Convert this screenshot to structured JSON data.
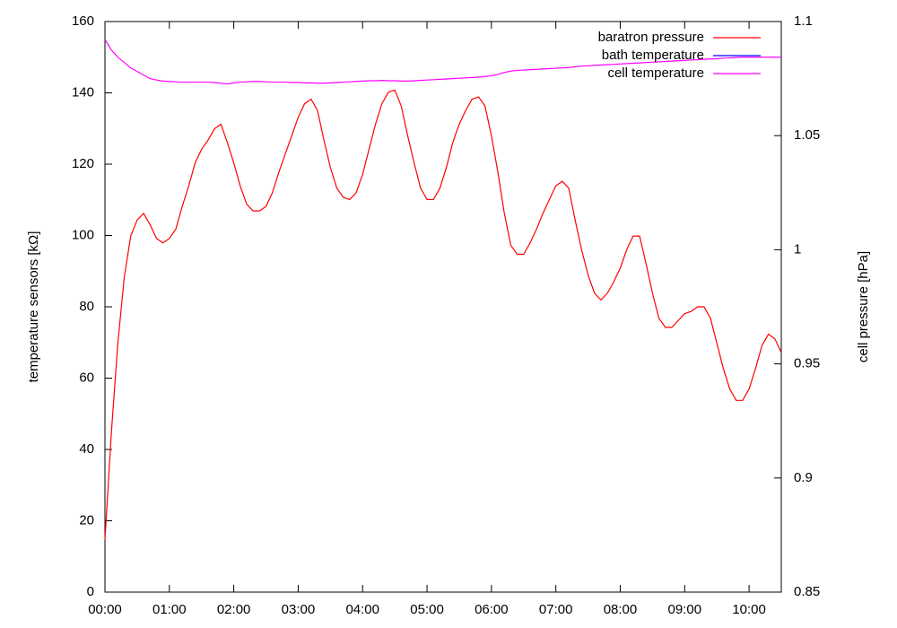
{
  "chart_data": {
    "type": "line",
    "ylabel": "temperature sensors [kΩ]",
    "y2label": "cell pressure [hPa]",
    "x": [
      0,
      0.1,
      0.2,
      0.3,
      0.4,
      0.5,
      0.6,
      0.7,
      0.8,
      0.9,
      1,
      1.1,
      1.2,
      1.3,
      1.4,
      1.5,
      1.6,
      1.7,
      1.8,
      1.9,
      2,
      2.1,
      2.2,
      2.3,
      2.4,
      2.5,
      2.6,
      2.7,
      2.8,
      2.9,
      3,
      3.1,
      3.2,
      3.3,
      3.4,
      3.5,
      3.6,
      3.7,
      3.8,
      3.9,
      4,
      4.1,
      4.2,
      4.3,
      4.4,
      4.5,
      4.6,
      4.7,
      4.8,
      4.9,
      5,
      5.1,
      5.2,
      5.3,
      5.4,
      5.5,
      5.6,
      5.7,
      5.8,
      5.9,
      6,
      6.1,
      6.2,
      6.3,
      6.4,
      6.5,
      6.6,
      6.7,
      6.8,
      6.9,
      7,
      7.1,
      7.2,
      7.3,
      7.4,
      7.5,
      7.6,
      7.7,
      7.8,
      7.9,
      8,
      8.1,
      8.2,
      8.3,
      8.4,
      8.5,
      8.6,
      8.7,
      8.8,
      8.9,
      9,
      9.1,
      9.2,
      9.3,
      9.4,
      9.5,
      9.6,
      9.7,
      9.8,
      9.9,
      10,
      10.1,
      10.2,
      10.3,
      10.4,
      10.5
    ],
    "series": [
      {
        "name": "baratron pressure",
        "color": "#ff0000",
        "axis": "y2",
        "values": [
          0.873,
          0.92,
          0.959,
          0.988,
          1.006,
          1.013,
          1.016,
          1.011,
          1.005,
          1.003,
          1.005,
          1.009,
          1.019,
          1.028,
          1.038,
          1.044,
          1.048,
          1.053,
          1.055,
          1.047,
          1.038,
          1.028,
          1.02,
          1.017,
          1.017,
          1.019,
          1.025,
          1.034,
          1.042,
          1.05,
          1.058,
          1.064,
          1.066,
          1.061,
          1.048,
          1.036,
          1.027,
          1.023,
          1.022,
          1.025,
          1.033,
          1.044,
          1.055,
          1.064,
          1.069,
          1.07,
          1.063,
          1.05,
          1.038,
          1.027,
          1.022,
          1.022,
          1.027,
          1.036,
          1.047,
          1.055,
          1.061,
          1.066,
          1.067,
          1.063,
          1.05,
          1.034,
          1.016,
          1.002,
          0.998,
          0.998,
          1.003,
          1.009,
          1.016,
          1.022,
          1.028,
          1.03,
          1.027,
          1.013,
          1.0,
          0.989,
          0.981,
          0.978,
          0.981,
          0.986,
          0.992,
          1.0,
          1.006,
          1.006,
          0.994,
          0.981,
          0.97,
          0.966,
          0.966,
          0.969,
          0.972,
          0.973,
          0.975,
          0.975,
          0.97,
          0.959,
          0.948,
          0.939,
          0.934,
          0.934,
          0.939,
          0.948,
          0.958,
          0.963,
          0.961,
          0.955
        ]
      },
      {
        "name": "bath temperature",
        "color": "#0000ff",
        "values": [
          null,
          null,
          null,
          null,
          null,
          null,
          null,
          null,
          null,
          null,
          null,
          null,
          null,
          null,
          null,
          null,
          null,
          null,
          null,
          null,
          null,
          null,
          null,
          null,
          null,
          null,
          null,
          null,
          null,
          null,
          null,
          null,
          null,
          null,
          null,
          null,
          null,
          null,
          null,
          null,
          null,
          null,
          null,
          null,
          null,
          null,
          null,
          null,
          null,
          null,
          null,
          null,
          null,
          null,
          null,
          null,
          null,
          null,
          null,
          null,
          null,
          null,
          null,
          null,
          null,
          null,
          null,
          null,
          null,
          null,
          null,
          null,
          null,
          null,
          null,
          null,
          null,
          null,
          null,
          null,
          null,
          null,
          null,
          null,
          null,
          null,
          null,
          null,
          null,
          null,
          null,
          null,
          null,
          null,
          null,
          null,
          null,
          null,
          null,
          null,
          null,
          null,
          null,
          null,
          null,
          null
        ]
      },
      {
        "name": "cell temperature",
        "color": "#ff00ff",
        "values": [
          155,
          152,
          150,
          148.5,
          147,
          146,
          145,
          144,
          143.6,
          143.3,
          143.2,
          143.1,
          143,
          143,
          143,
          143,
          143,
          142.9,
          142.7,
          142.5,
          142.8,
          143,
          143.1,
          143.2,
          143.2,
          143.1,
          143,
          143,
          143,
          142.9,
          142.9,
          142.8,
          142.8,
          142.7,
          142.7,
          142.8,
          142.9,
          143,
          143.1,
          143.2,
          143.3,
          143.4,
          143.4,
          143.5,
          143.4,
          143.4,
          143.3,
          143.3,
          143.4,
          143.5,
          143.6,
          143.7,
          143.8,
          143.9,
          144,
          144.1,
          144.2,
          144.3,
          144.4,
          144.6,
          144.8,
          145.2,
          145.7,
          146.1,
          146.3,
          146.4,
          146.5,
          146.6,
          146.7,
          146.8,
          146.9,
          147,
          147.1,
          147.3,
          147.5,
          147.6,
          147.7,
          147.8,
          147.9,
          148,
          148.1,
          148.2,
          148.3,
          148.4,
          148.5,
          148.6,
          148.7,
          148.8,
          148.9,
          149,
          149.1,
          149.2,
          149.3,
          149.4,
          149.5,
          149.6,
          149.7,
          149.8,
          149.9,
          150,
          150,
          150,
          150,
          150,
          150,
          150
        ]
      }
    ],
    "xlim": [
      0,
      10.5
    ],
    "xticks": [
      {
        "value": 0,
        "label": "00:00"
      },
      {
        "value": 1,
        "label": "01:00"
      },
      {
        "value": 2,
        "label": "02:00"
      },
      {
        "value": 3,
        "label": "03:00"
      },
      {
        "value": 4,
        "label": "04:00"
      },
      {
        "value": 5,
        "label": "05:00"
      },
      {
        "value": 6,
        "label": "06:00"
      },
      {
        "value": 7,
        "label": "07:00"
      },
      {
        "value": 8,
        "label": "08:00"
      },
      {
        "value": 9,
        "label": "09:00"
      },
      {
        "value": 10,
        "label": "10:00"
      }
    ],
    "ylim": [
      0,
      160
    ],
    "yticks": [
      0,
      20,
      40,
      60,
      80,
      100,
      120,
      140,
      160
    ],
    "y2lim": [
      0.85,
      1.1
    ],
    "y2ticks": [
      0.85,
      0.9,
      0.95,
      1,
      1.05,
      1.1
    ],
    "legend": "top-right"
  }
}
